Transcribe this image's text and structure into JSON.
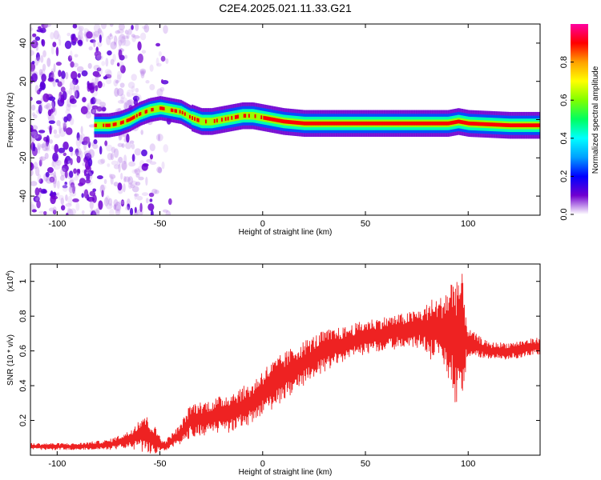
{
  "title": "C2E4.2025.021.11.33.G21",
  "chart_data": [
    {
      "type": "heatmap",
      "title": "C2E4.2025.021.11.33.G21",
      "xlabel": "Height of straight line (km)",
      "ylabel": "Frequency (Hz)",
      "xlim": [
        -113,
        135
      ],
      "ylim": [
        -50,
        50
      ],
      "x_ticks": [
        -100,
        -50,
        0,
        50,
        100
      ],
      "y_ticks": [
        -40,
        -20,
        0,
        20,
        40
      ],
      "colorbar": {
        "label": "Normalized spectral amplitude",
        "range": [
          0,
          1
        ],
        "ticks": [
          "0.0",
          "0.2",
          "0.4",
          "0.6",
          "0.8"
        ],
        "colors": [
          "#ffffff",
          "#7000d0",
          "#0000ff",
          "#00a0ff",
          "#00ffff",
          "#00ff60",
          "#80ff00",
          "#ffff00",
          "#ffa000",
          "#ff0000",
          "#ff00a0"
        ]
      },
      "ridge": [
        {
          "x": -80,
          "y": -3
        },
        {
          "x": -75,
          "y": -3
        },
        {
          "x": -70,
          "y": -2
        },
        {
          "x": -65,
          "y": 0
        },
        {
          "x": -60,
          "y": 3
        },
        {
          "x": -55,
          "y": 5
        },
        {
          "x": -50,
          "y": 6
        },
        {
          "x": -45,
          "y": 5
        },
        {
          "x": -40,
          "y": 4
        },
        {
          "x": -35,
          "y": 1
        },
        {
          "x": -30,
          "y": -1
        },
        {
          "x": -25,
          "y": -1
        },
        {
          "x": -20,
          "y": 0
        },
        {
          "x": -15,
          "y": 1
        },
        {
          "x": -10,
          "y": 2
        },
        {
          "x": -5,
          "y": 2
        },
        {
          "x": 0,
          "y": 1
        },
        {
          "x": 5,
          "y": 0
        },
        {
          "x": 10,
          "y": -1
        },
        {
          "x": 20,
          "y": -2
        },
        {
          "x": 40,
          "y": -2
        },
        {
          "x": 60,
          "y": -2
        },
        {
          "x": 70,
          "y": -2
        },
        {
          "x": 80,
          "y": -2
        },
        {
          "x": 90,
          "y": -2
        },
        {
          "x": 95,
          "y": -1
        },
        {
          "x": 100,
          "y": -2
        },
        {
          "x": 120,
          "y": -3
        },
        {
          "x": 135,
          "y": -3
        }
      ]
    },
    {
      "type": "line",
      "xlabel": "Height of straight line (km)",
      "ylabel": "SNR (10 * v/v)",
      "y_scale_note": "(x10",
      "y_scale_exp": "4",
      "xlim": [
        -113,
        135
      ],
      "ylim": [
        0,
        1.1
      ],
      "x_ticks": [
        -100,
        -50,
        0,
        50,
        100
      ],
      "y_ticks": [
        0.2,
        0.4,
        0.6,
        0.8,
        1.0
      ],
      "series": [
        {
          "color": "#ee2222",
          "envelope": [
            {
              "x": -113,
              "y": 0.05,
              "a": 0.02
            },
            {
              "x": -90,
              "y": 0.05,
              "a": 0.02
            },
            {
              "x": -75,
              "y": 0.06,
              "a": 0.03
            },
            {
              "x": -65,
              "y": 0.09,
              "a": 0.05
            },
            {
              "x": -58,
              "y": 0.13,
              "a": 0.12
            },
            {
              "x": -52,
              "y": 0.08,
              "a": 0.08
            },
            {
              "x": -48,
              "y": 0.05,
              "a": 0.03
            },
            {
              "x": -40,
              "y": 0.12,
              "a": 0.06
            },
            {
              "x": -35,
              "y": 0.2,
              "a": 0.1
            },
            {
              "x": -25,
              "y": 0.22,
              "a": 0.1
            },
            {
              "x": -15,
              "y": 0.25,
              "a": 0.12
            },
            {
              "x": -5,
              "y": 0.3,
              "a": 0.12
            },
            {
              "x": 0,
              "y": 0.36,
              "a": 0.14
            },
            {
              "x": 10,
              "y": 0.45,
              "a": 0.14
            },
            {
              "x": 20,
              "y": 0.53,
              "a": 0.13
            },
            {
              "x": 30,
              "y": 0.6,
              "a": 0.12
            },
            {
              "x": 40,
              "y": 0.64,
              "a": 0.1
            },
            {
              "x": 50,
              "y": 0.68,
              "a": 0.1
            },
            {
              "x": 60,
              "y": 0.7,
              "a": 0.1
            },
            {
              "x": 70,
              "y": 0.72,
              "a": 0.1
            },
            {
              "x": 78,
              "y": 0.73,
              "a": 0.12
            },
            {
              "x": 82,
              "y": 0.72,
              "a": 0.18
            },
            {
              "x": 86,
              "y": 0.74,
              "a": 0.16
            },
            {
              "x": 90,
              "y": 0.7,
              "a": 0.28
            },
            {
              "x": 94,
              "y": 0.68,
              "a": 0.4
            },
            {
              "x": 97,
              "y": 0.7,
              "a": 0.35
            },
            {
              "x": 100,
              "y": 0.65,
              "a": 0.08
            },
            {
              "x": 110,
              "y": 0.6,
              "a": 0.05
            },
            {
              "x": 120,
              "y": 0.6,
              "a": 0.05
            },
            {
              "x": 135,
              "y": 0.63,
              "a": 0.05
            }
          ]
        }
      ]
    }
  ]
}
